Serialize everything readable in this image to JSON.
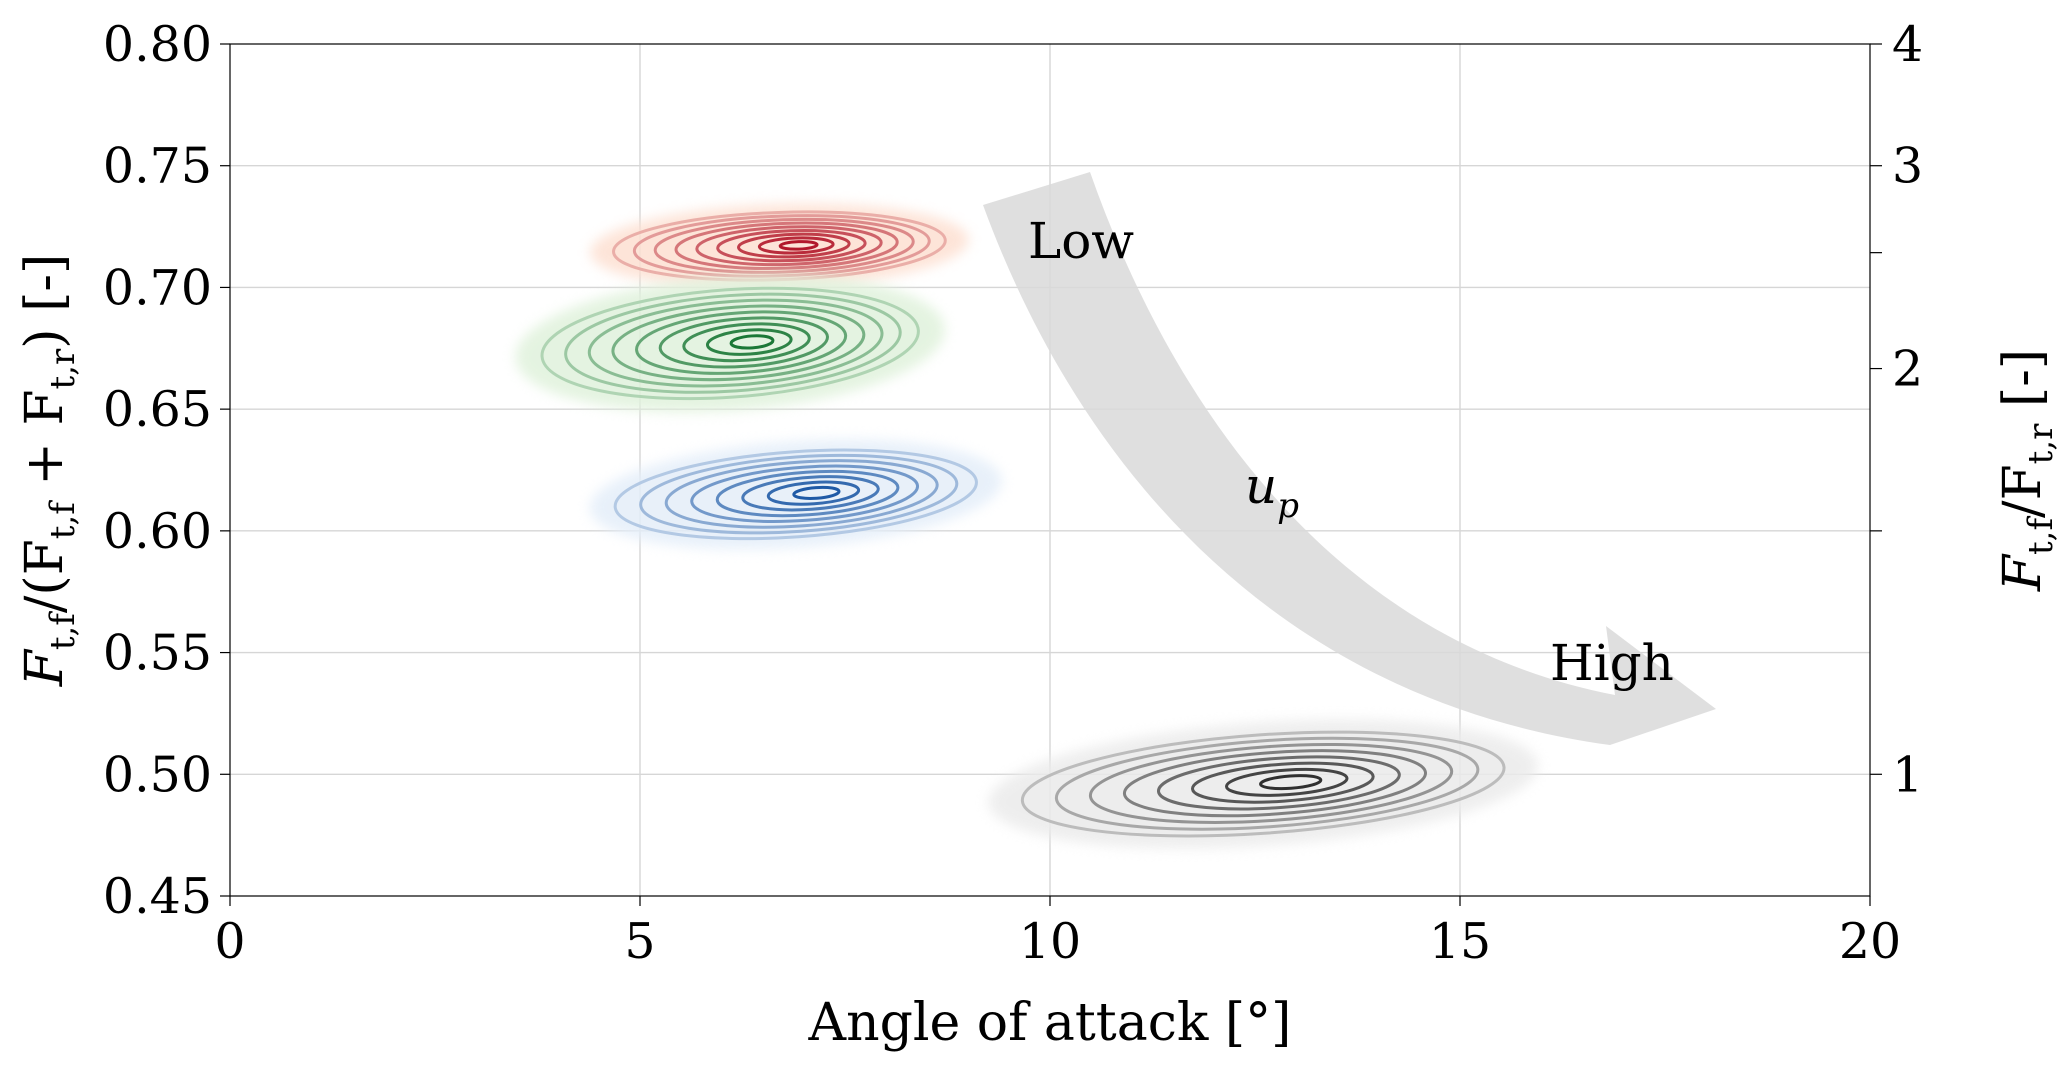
{
  "chart_data": {
    "type": "contour",
    "xlabel": "Angle of attack [°]",
    "ylabel_left": {
      "main": "F",
      "sub1": "t,f",
      "mid": "/(F",
      "sub2": "t,f",
      "plus": " + F",
      "sub3": "t,r",
      "end": ") [-]"
    },
    "ylabel_right": {
      "main": "F",
      "sub1": "t,f",
      "mid": "/F",
      "sub2": "t,r",
      "end": " [-]"
    },
    "xlim": [
      0,
      20
    ],
    "ylim": [
      0.45,
      0.8
    ],
    "x_ticks": [
      0,
      5,
      10,
      15,
      20
    ],
    "y_ticks": [
      0.45,
      0.5,
      0.55,
      0.6,
      0.65,
      0.7,
      0.75,
      0.8
    ],
    "x_tick_labels": [
      "0",
      "5",
      "10",
      "15",
      "20"
    ],
    "y_tick_labels": [
      "0.45",
      "0.50",
      "0.55",
      "0.60",
      "0.65",
      "0.70",
      "0.75",
      "0.80"
    ],
    "right_axis": {
      "scale": "ratio r/(1-r)",
      "ticks": [
        1,
        2,
        3,
        4
      ],
      "tick_labels": [
        "1",
        "2",
        "3",
        "4"
      ],
      "minor_ticks": [
        1.5,
        2.5
      ]
    },
    "grid": true,
    "series": [
      {
        "color": "#b2182b",
        "light": "#fde0d2",
        "center": [
          6.7,
          0.717
        ],
        "sx": 2.2,
        "sy": 0.015,
        "rot": -2,
        "levels": 9
      },
      {
        "color": "#1b7837",
        "light": "#e0f2dc",
        "center": [
          6.1,
          0.677
        ],
        "sx": 2.5,
        "sy": 0.024,
        "rot": -4,
        "levels": 9
      },
      {
        "color": "#1f5aa6",
        "light": "#e4eef9",
        "center": [
          6.9,
          0.615
        ],
        "sx": 2.4,
        "sy": 0.019,
        "rot": -4,
        "levels": 8
      },
      {
        "color": "#303030",
        "light": "#ebebeb",
        "center": [
          12.6,
          0.496
        ],
        "sx": 3.2,
        "sy": 0.022,
        "rot": -4,
        "levels": 8
      }
    ],
    "annotations": {
      "arrow_color": "#d9d9d9",
      "low_label": "Low",
      "high_label": "High",
      "arrow_variable": "u",
      "arrow_variable_sub": "p"
    }
  }
}
